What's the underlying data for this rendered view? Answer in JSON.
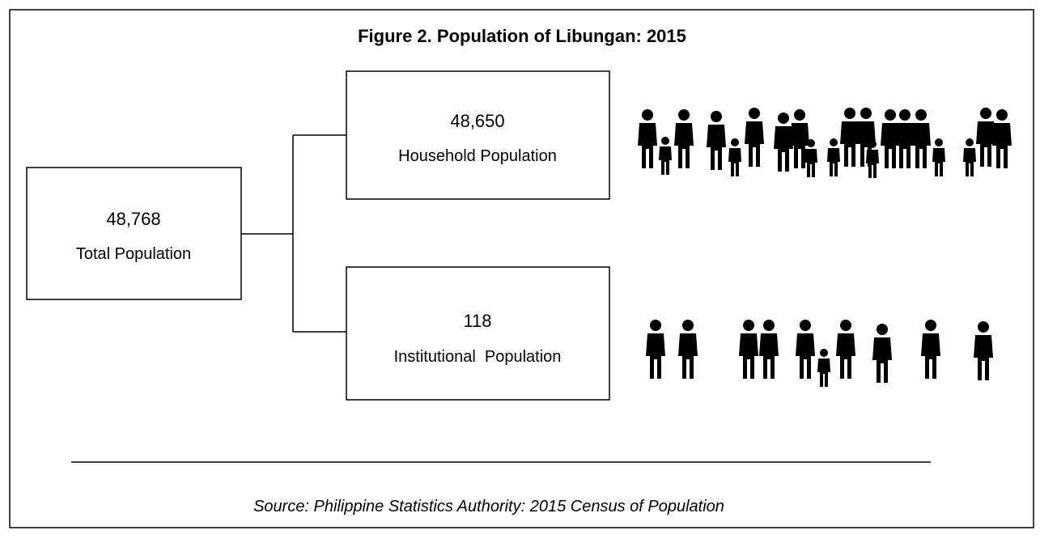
{
  "title": "Figure 2. Population of Libungan: 2015",
  "nodes": [
    {
      "value": "48,768",
      "label": "Total Population"
    },
    {
      "value": "48,650",
      "label": "Household Population"
    },
    {
      "value": "118",
      "label": "Institutional  Population"
    }
  ],
  "source": "Source: Philippine Statistics Authority: 2015 Census of Population"
}
